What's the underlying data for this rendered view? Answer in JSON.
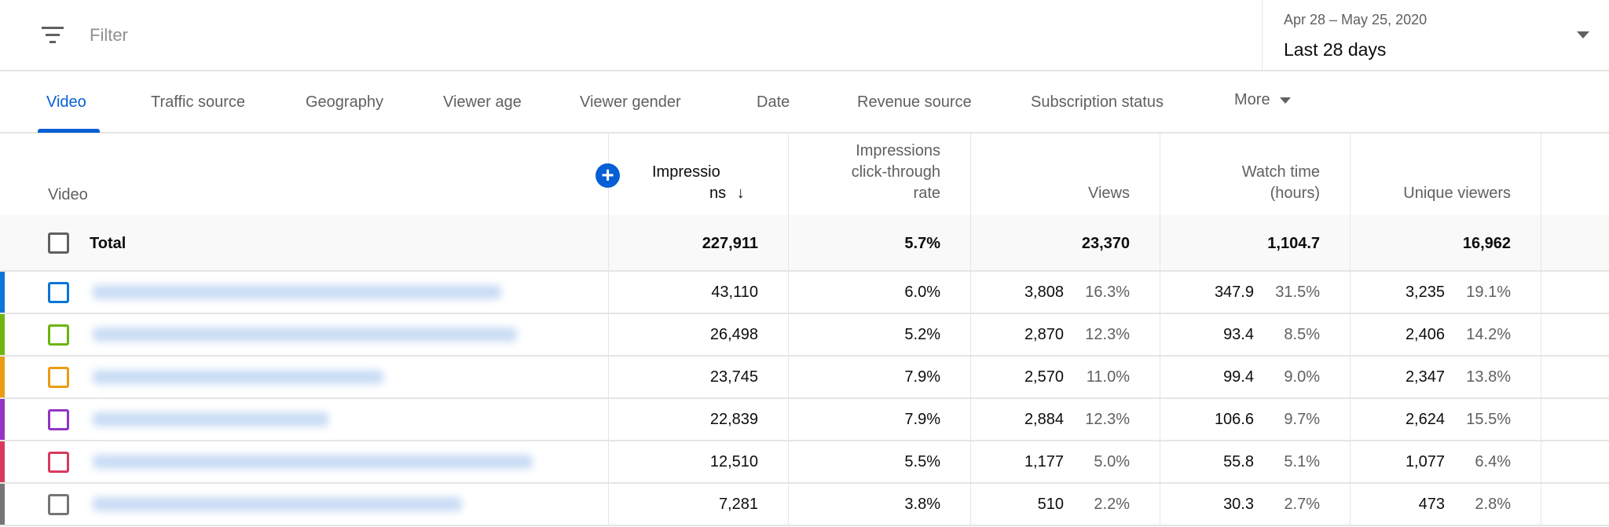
{
  "filter": {
    "icon": "filter-icon",
    "placeholder": "Filter"
  },
  "date_picker": {
    "range": "Apr 28 – May 25, 2020",
    "label": "Last 28 days",
    "icon": "dropdown-arrow-icon"
  },
  "tabs": [
    {
      "label": "Video",
      "active": true
    },
    {
      "label": "Traffic source"
    },
    {
      "label": "Geography"
    },
    {
      "label": "Viewer age"
    },
    {
      "label": "Viewer gender"
    },
    {
      "label": "Date"
    },
    {
      "label": "Revenue source"
    },
    {
      "label": "Subscription status"
    },
    {
      "label": "More"
    }
  ],
  "accent": "#065fd4",
  "columns": {
    "video": "Video",
    "impressions_1": "Impressio",
    "impressions_2": "ns",
    "sort_icon": "↓",
    "ctr_1": "Impressions",
    "ctr_2": "click-through",
    "ctr_3": "rate",
    "views": "Views",
    "watch_1": "Watch time",
    "watch_2": "(hours)",
    "unique": "Unique viewers",
    "add_icon": "+"
  },
  "total": {
    "label": "Total",
    "impressions": "227,911",
    "ctr": "5.7%",
    "views": "23,370",
    "watch_time": "1,104.7",
    "unique_viewers": "16,962"
  },
  "rows": [
    {
      "color": "#0b76d8",
      "impressions": "43,110",
      "ctr": "6.0%",
      "views": "3,808",
      "views_pct": "16.3%",
      "watch_time": "347.9",
      "watch_pct": "31.5%",
      "unique_viewers": "3,235",
      "unique_pct": "19.1%"
    },
    {
      "color": "#6cb50c",
      "impressions": "26,498",
      "ctr": "5.2%",
      "views": "2,870",
      "views_pct": "12.3%",
      "watch_time": "93.4",
      "watch_pct": "8.5%",
      "unique_viewers": "2,406",
      "unique_pct": "14.2%"
    },
    {
      "color": "#ea9c12",
      "impressions": "23,745",
      "ctr": "7.9%",
      "views": "2,570",
      "views_pct": "11.0%",
      "watch_time": "99.4",
      "watch_pct": "9.0%",
      "unique_viewers": "2,347",
      "unique_pct": "13.8%"
    },
    {
      "color": "#9334c4",
      "impressions": "22,839",
      "ctr": "7.9%",
      "views": "2,884",
      "views_pct": "12.3%",
      "watch_time": "106.6",
      "watch_pct": "9.7%",
      "unique_viewers": "2,624",
      "unique_pct": "15.5%"
    },
    {
      "color": "#d93a5c",
      "impressions": "12,510",
      "ctr": "5.5%",
      "views": "1,177",
      "views_pct": "5.0%",
      "watch_time": "55.8",
      "watch_pct": "5.1%",
      "unique_viewers": "1,077",
      "unique_pct": "6.4%"
    },
    {
      "color": "#757575",
      "impressions": "7,281",
      "ctr": "3.8%",
      "views": "510",
      "views_pct": "2.2%",
      "watch_time": "30.3",
      "watch_pct": "2.7%",
      "unique_viewers": "473",
      "unique_pct": "2.8%"
    }
  ]
}
